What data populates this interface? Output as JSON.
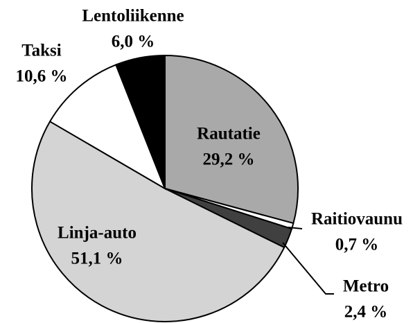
{
  "chart_data": {
    "type": "pie",
    "categories": [
      "Rautatie",
      "Raitiovaunu",
      "Metro",
      "Linja-auto",
      "Taksi",
      "Lentoliikenne"
    ],
    "values": [
      29.2,
      0.7,
      2.4,
      51.1,
      10.6,
      6.0
    ],
    "value_labels": [
      "29,2 %",
      "0,7 %",
      "2,4 %",
      "51,1 %",
      "10,6 %",
      "6,0 %"
    ],
    "colors": [
      "#a9a9a9",
      "#ffffff",
      "#404040",
      "#d4d4d4",
      "#ffffff",
      "#000000"
    ]
  }
}
